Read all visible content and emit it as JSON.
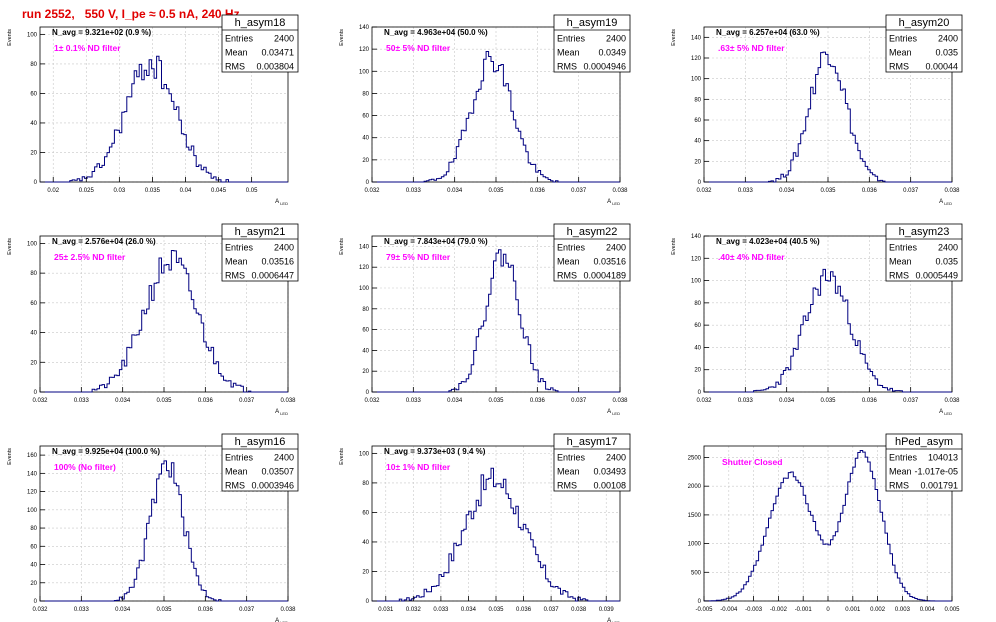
{
  "run_title": "run 2552,   550 V, I_pe ≈ 0.5 nA, 240 Hz",
  "chart_data": [
    {
      "type": "bar",
      "name": "h_asym18",
      "navg": "N_avg = 9.321e+02 (0.9 %)",
      "label": "1± 0.1% ND filter",
      "stats": [
        [
          "Entries",
          "2400"
        ],
        [
          "Mean",
          "0.03471"
        ],
        [
          "RMS",
          "0.003804"
        ]
      ],
      "xlim": [
        0.018,
        0.0555
      ],
      "ylim": [
        0,
        105
      ],
      "xticks": [
        0.02,
        0.025,
        0.03,
        0.035,
        0.04,
        0.045,
        0.05
      ],
      "xticklabels": [
        "0.02",
        "0.025",
        "0.03",
        "0.035",
        "0.04",
        "0.045",
        "0.05"
      ],
      "yticks": [
        0,
        20,
        40,
        60,
        80,
        100
      ],
      "xlabel": "A_LED",
      "ylabel": "Events",
      "dist": {
        "mu": 0.03471,
        "sigma": 0.003804,
        "peak": 80,
        "seed": 18
      },
      "grid": true
    },
    {
      "type": "bar",
      "name": "h_asym19",
      "navg": "N_avg = 4.963e+04 (50.0 %)",
      "label": "50± 5% ND filter",
      "stats": [
        [
          "Entries",
          "2400"
        ],
        [
          "Mean",
          "0.0349"
        ],
        [
          "RMS",
          "0.0004946"
        ]
      ],
      "xlim": [
        0.032,
        0.038
      ],
      "ylim": [
        0,
        140
      ],
      "xticks": [
        0.032,
        0.033,
        0.034,
        0.035,
        0.036,
        0.037,
        0.038
      ],
      "xticklabels": [
        "0.032",
        "0.033",
        "0.034",
        "0.035",
        "0.036",
        "0.037",
        "0.038"
      ],
      "yticks": [
        0,
        20,
        40,
        60,
        80,
        100,
        120,
        140
      ],
      "xlabel": "A_LED",
      "ylabel": "Events",
      "dist": {
        "mu": 0.0349,
        "sigma": 0.0004946,
        "peak": 112,
        "seed": 19
      },
      "grid": true
    },
    {
      "type": "bar",
      "name": "h_asym20",
      "navg": "N_avg = 6.257e+04 (63.0 %)",
      "label": ".63± 5% ND filter",
      "stats": [
        [
          "Entries",
          "2400"
        ],
        [
          "Mean",
          "0.035"
        ],
        [
          "RMS",
          "0.00044"
        ]
      ],
      "xlim": [
        0.032,
        0.038
      ],
      "ylim": [
        0,
        150
      ],
      "xticks": [
        0.032,
        0.033,
        0.034,
        0.035,
        0.036,
        0.037,
        0.038
      ],
      "xticklabels": [
        "0.032",
        "0.033",
        "0.034",
        "0.035",
        "0.036",
        "0.037",
        "0.038"
      ],
      "yticks": [
        0,
        20,
        40,
        60,
        80,
        100,
        120,
        140
      ],
      "xlabel": "A_LED",
      "ylabel": "Events",
      "dist": {
        "mu": 0.035,
        "sigma": 0.00044,
        "peak": 126,
        "seed": 20
      },
      "grid": true
    },
    {
      "type": "bar",
      "name": "h_asym21",
      "navg": "N_avg = 2.576e+04 (26.0 %)",
      "label": "25± 2.5% ND filter",
      "stats": [
        [
          "Entries",
          "2400"
        ],
        [
          "Mean",
          "0.03516"
        ],
        [
          "RMS",
          "0.0006447"
        ]
      ],
      "xlim": [
        0.032,
        0.038
      ],
      "ylim": [
        0,
        105
      ],
      "xticks": [
        0.032,
        0.033,
        0.034,
        0.035,
        0.036,
        0.037,
        0.038
      ],
      "xticklabels": [
        "0.032",
        "0.033",
        "0.034",
        "0.035",
        "0.036",
        "0.037",
        "0.038"
      ],
      "yticks": [
        0,
        20,
        40,
        60,
        80,
        100
      ],
      "xlabel": "A_LED",
      "ylabel": "Events",
      "dist": {
        "mu": 0.03516,
        "sigma": 0.0006447,
        "peak": 88,
        "seed": 21
      },
      "grid": true
    },
    {
      "type": "bar",
      "name": "h_asym22",
      "navg": "N_avg = 7.843e+04 (79.0 %)",
      "label": "79± 5% ND filter",
      "stats": [
        [
          "Entries",
          "2400"
        ],
        [
          "Mean",
          "0.03516"
        ],
        [
          "RMS",
          "0.0004189"
        ]
      ],
      "xlim": [
        0.032,
        0.038
      ],
      "ylim": [
        0,
        150
      ],
      "xticks": [
        0.032,
        0.033,
        0.034,
        0.035,
        0.036,
        0.037,
        0.038
      ],
      "xticklabels": [
        "0.032",
        "0.033",
        "0.034",
        "0.035",
        "0.036",
        "0.037",
        "0.038"
      ],
      "yticks": [
        0,
        20,
        40,
        60,
        80,
        100,
        120,
        140
      ],
      "xlabel": "A_LED",
      "ylabel": "Events",
      "dist": {
        "mu": 0.03516,
        "sigma": 0.0004189,
        "peak": 132,
        "seed": 22
      },
      "grid": true
    },
    {
      "type": "bar",
      "name": "h_asym23",
      "navg": "N_avg = 4.023e+04 (40.5 %)",
      "label": ".40± 4% ND filter",
      "stats": [
        [
          "Entries",
          "2400"
        ],
        [
          "Mean",
          "0.035"
        ],
        [
          "RMS",
          "0.0005449"
        ]
      ],
      "xlim": [
        0.032,
        0.038
      ],
      "ylim": [
        0,
        140
      ],
      "xticks": [
        0.032,
        0.033,
        0.034,
        0.035,
        0.036,
        0.037,
        0.038
      ],
      "xticklabels": [
        "0.032",
        "0.033",
        "0.034",
        "0.035",
        "0.036",
        "0.037",
        "0.038"
      ],
      "yticks": [
        0,
        20,
        40,
        60,
        80,
        100,
        120,
        140
      ],
      "xlabel": "A_LED",
      "ylabel": "Events",
      "dist": {
        "mu": 0.035,
        "sigma": 0.0005449,
        "peak": 104,
        "seed": 23
      },
      "grid": true
    },
    {
      "type": "bar",
      "name": "h_asym16",
      "navg": "N_avg = 9.925e+04 (100.0 %)",
      "label": "100% (No filter)",
      "stats": [
        [
          "Entries",
          "2400"
        ],
        [
          "Mean",
          "0.03507"
        ],
        [
          "RMS",
          "0.0003946"
        ]
      ],
      "xlim": [
        0.032,
        0.038
      ],
      "ylim": [
        0,
        170
      ],
      "xticks": [
        0.032,
        0.033,
        0.034,
        0.035,
        0.036,
        0.037,
        0.038
      ],
      "xticklabels": [
        "0.032",
        "0.033",
        "0.034",
        "0.035",
        "0.036",
        "0.037",
        "0.038"
      ],
      "yticks": [
        0,
        20,
        40,
        60,
        80,
        100,
        120,
        140,
        160
      ],
      "xlabel": "A_LED",
      "ylabel": "Events",
      "dist": {
        "mu": 0.03507,
        "sigma": 0.0003946,
        "peak": 150,
        "seed": 16
      },
      "grid": true
    },
    {
      "type": "bar",
      "name": "h_asym17",
      "navg": "N_avg = 9.373e+03 ( 9.4 %)",
      "label": "10± 1% ND filter",
      "stats": [
        [
          "Entries",
          "2400"
        ],
        [
          "Mean",
          "0.03493"
        ],
        [
          "RMS",
          "0.00108"
        ]
      ],
      "xlim": [
        0.0305,
        0.0395
      ],
      "ylim": [
        0,
        105
      ],
      "xticks": [
        0.031,
        0.032,
        0.033,
        0.034,
        0.035,
        0.036,
        0.037,
        0.038,
        0.039
      ],
      "xticklabels": [
        "0.031",
        "0.032",
        "0.033",
        "0.034",
        "0.035",
        "0.036",
        "0.037",
        "0.038",
        "0.039"
      ],
      "yticks": [
        0,
        20,
        40,
        60,
        80,
        100
      ],
      "xlabel": "A_LED",
      "ylabel": "Events",
      "dist": {
        "mu": 0.03493,
        "sigma": 0.00108,
        "peak": 82,
        "seed": 17
      },
      "grid": true
    },
    {
      "type": "bar",
      "name": "hPed_asym",
      "navg": "",
      "label": "Shutter Closed",
      "stats": [
        [
          "Entries",
          "104013"
        ],
        [
          "Mean",
          "-1.017e-05"
        ],
        [
          "RMS",
          "0.001791"
        ]
      ],
      "xlim": [
        -0.005,
        0.005
      ],
      "ylim": [
        0,
        2700
      ],
      "xticks": [
        -0.005,
        -0.004,
        -0.003,
        -0.002,
        -0.001,
        0,
        0.001,
        0.002,
        0.003,
        0.004,
        0.005
      ],
      "xticklabels": [
        "-0.005",
        "-0.004",
        "-0.003",
        "-0.002",
        "-0.001",
        "0",
        "0.001",
        "0.002",
        "0.003",
        "0.004",
        "0.005"
      ],
      "yticks": [
        0,
        500,
        1000,
        1500,
        2000,
        2500
      ],
      "xlabel": "",
      "ylabel": "",
      "dist": {
        "bimodal": true,
        "mu1": -0.0015,
        "mu2": 0.0014,
        "s1": 0.0009,
        "s2": 0.00075,
        "peak": 2450,
        "seed": 99
      },
      "grid": true
    }
  ],
  "colors": {
    "title": "#e00000",
    "label": "#ff00ff",
    "line": "#000080",
    "axis": "#000000",
    "grid": "#c8c8c8"
  }
}
